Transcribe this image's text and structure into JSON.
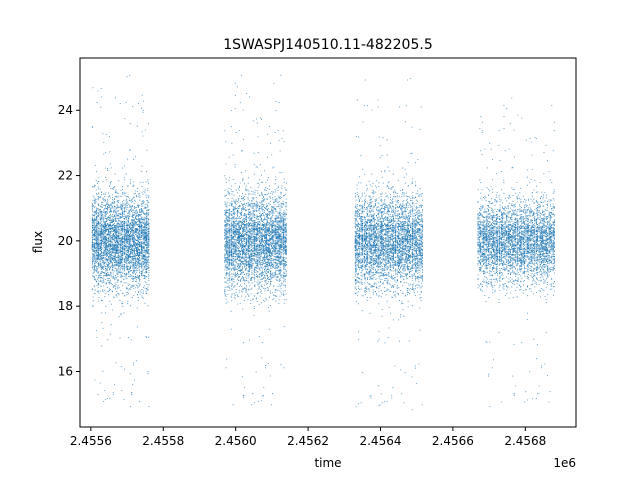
{
  "chart_data": {
    "type": "scatter",
    "title": "1SWASPJ140510.11-482205.5",
    "xlabel": "time",
    "ylabel": "flux",
    "x_offset_label": "1e6",
    "xlim": [
      2455570,
      2456940
    ],
    "ylim": [
      14.3,
      25.6
    ],
    "x_ticks": [
      2455600,
      2455800,
      2456000,
      2456200,
      2456400,
      2456600,
      2456800
    ],
    "x_tick_labels": [
      "2.4556",
      "2.4558",
      "2.4560",
      "2.4562",
      "2.4564",
      "2.4566",
      "2.4568"
    ],
    "y_ticks": [
      16,
      18,
      20,
      22,
      24
    ],
    "y_tick_labels": [
      "16",
      "18",
      "20",
      "22",
      "24"
    ],
    "grid": false,
    "legend": "none",
    "marker_color": "#1f77b4",
    "series": [
      {
        "seasons": [
          {
            "x_range": [
              2455604,
              2455760
            ],
            "y_median": 20.0,
            "y_spread": [
              18.0,
              22.0
            ],
            "y_extent": [
              14.9,
              25.1
            ]
          },
          {
            "x_range": [
              2455970,
              2456140
            ],
            "y_median": 20.0,
            "y_spread": [
              18.0,
              22.2
            ],
            "y_extent": [
              14.8,
              25.1
            ]
          },
          {
            "x_range": [
              2456330,
              2456515
            ],
            "y_median": 20.0,
            "y_spread": [
              18.0,
              22.0
            ],
            "y_extent": [
              14.8,
              25.0
            ]
          },
          {
            "x_range": [
              2456670,
              2456880
            ],
            "y_median": 20.0,
            "y_spread": [
              18.3,
              21.8
            ],
            "y_extent": [
              14.9,
              24.4
            ]
          }
        ]
      }
    ]
  }
}
